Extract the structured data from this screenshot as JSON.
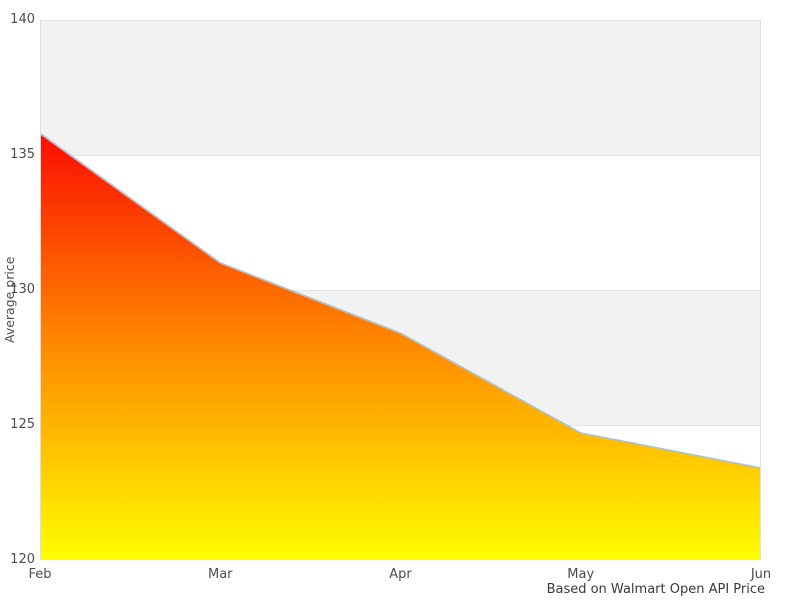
{
  "chart_data": {
    "type": "area",
    "categories": [
      "Feb",
      "Mar",
      "Apr",
      "May",
      "Jun"
    ],
    "values": [
      135.8,
      131.0,
      128.4,
      124.7,
      123.4
    ],
    "title": "",
    "xlabel": "",
    "ylabel": "Average price",
    "ylim": [
      120,
      140
    ],
    "yticks": [
      120,
      125,
      130,
      135,
      140
    ],
    "caption": "Based on Walmart Open API Price",
    "legend": "none",
    "grid": "alternating-horizontal-bands",
    "style": {
      "band_color": "#f2f2f2",
      "band_alt_color": "#ffffff",
      "band_border_color": "#e4e4e4",
      "plot_edge_color": "#dedede",
      "line_color": "#a6c3d9",
      "gradient_top": "#fb0d00",
      "gradient_mid": "#ff8a00",
      "gradient_bottom": "#ffff00",
      "label_color": "#4d4d4d",
      "caption_color": "#3a3a3a"
    }
  }
}
